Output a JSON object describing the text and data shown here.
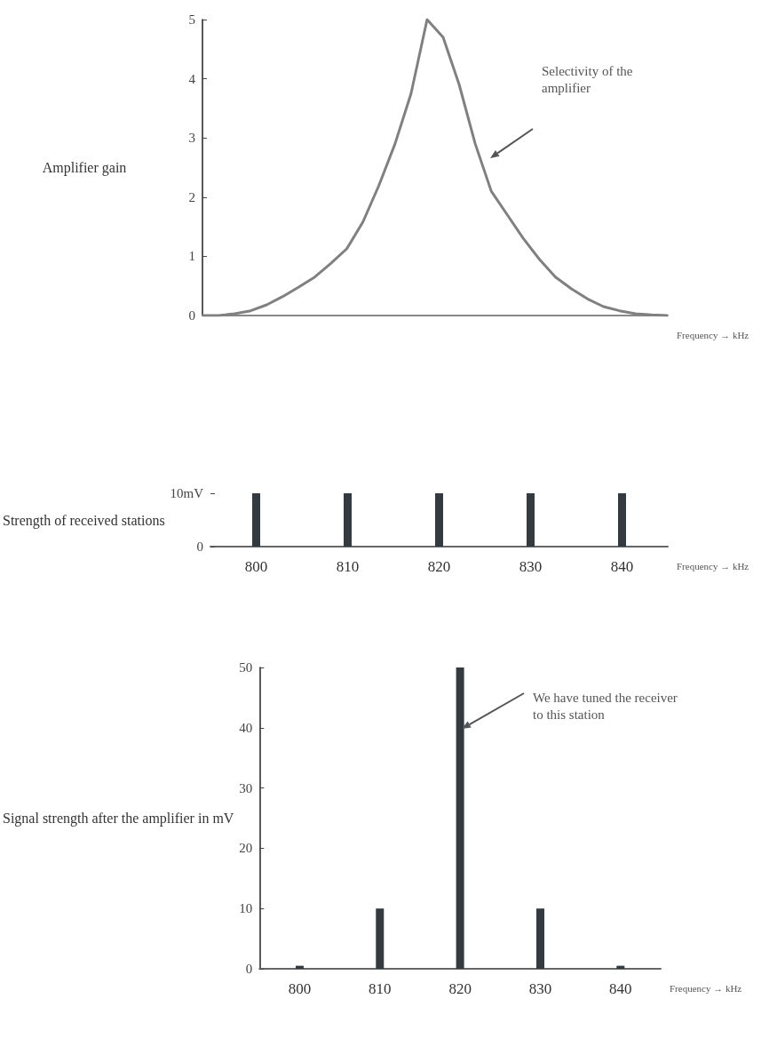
{
  "chart_data": [
    {
      "type": "line",
      "ylabel": "Amplifier gain",
      "xlabel": "Frequency → kHz",
      "color": "#808080",
      "marker": "none",
      "categories": [
        null,
        null,
        null,
        null,
        null,
        null,
        null,
        null,
        null,
        null,
        null,
        null,
        null,
        null,
        null,
        null,
        null,
        null,
        null,
        null,
        null,
        null,
        null,
        null,
        null,
        null,
        null,
        null,
        null,
        null
      ],
      "values": [
        0,
        0,
        0.03,
        0.08,
        0.18,
        0.32,
        0.48,
        0.65,
        0.88,
        1.13,
        1.58,
        2.2,
        2.9,
        3.75,
        5,
        4.7,
        3.9,
        2.9,
        2.1,
        1.7,
        1.3,
        0.95,
        0.65,
        0.45,
        0.28,
        0.15,
        0.08,
        0.03,
        0.01,
        0
      ],
      "ylim": [
        0,
        5
      ],
      "yticks": [
        0,
        1,
        2,
        3,
        4,
        5
      ],
      "annotations": [
        "Selectivity of the amplifier"
      ]
    },
    {
      "type": "bar",
      "ylabel": "Strength of received stations",
      "xlabel": "Frequency → kHz",
      "color": "#343b40",
      "categories": [
        "800",
        "810",
        "820",
        "830",
        "840"
      ],
      "values": [
        10,
        10,
        10,
        10,
        10
      ],
      "ylim": [
        0,
        10
      ],
      "yticks": [
        0,
        {
          "value": 10,
          "label": "10mV"
        }
      ]
    },
    {
      "type": "bar",
      "ylabel": "Signal strength after the amplifier in mV",
      "xlabel": "Frequency → kHz",
      "color": "#343b40",
      "categories": [
        "800",
        "810",
        "820",
        "830",
        "840"
      ],
      "values": [
        0.5,
        10,
        50,
        10,
        0.5
      ],
      "ylim": [
        0,
        50
      ],
      "yticks": [
        0,
        10,
        20,
        30,
        40,
        50
      ],
      "annotations": [
        "We have tuned the receiver to this station"
      ]
    }
  ]
}
